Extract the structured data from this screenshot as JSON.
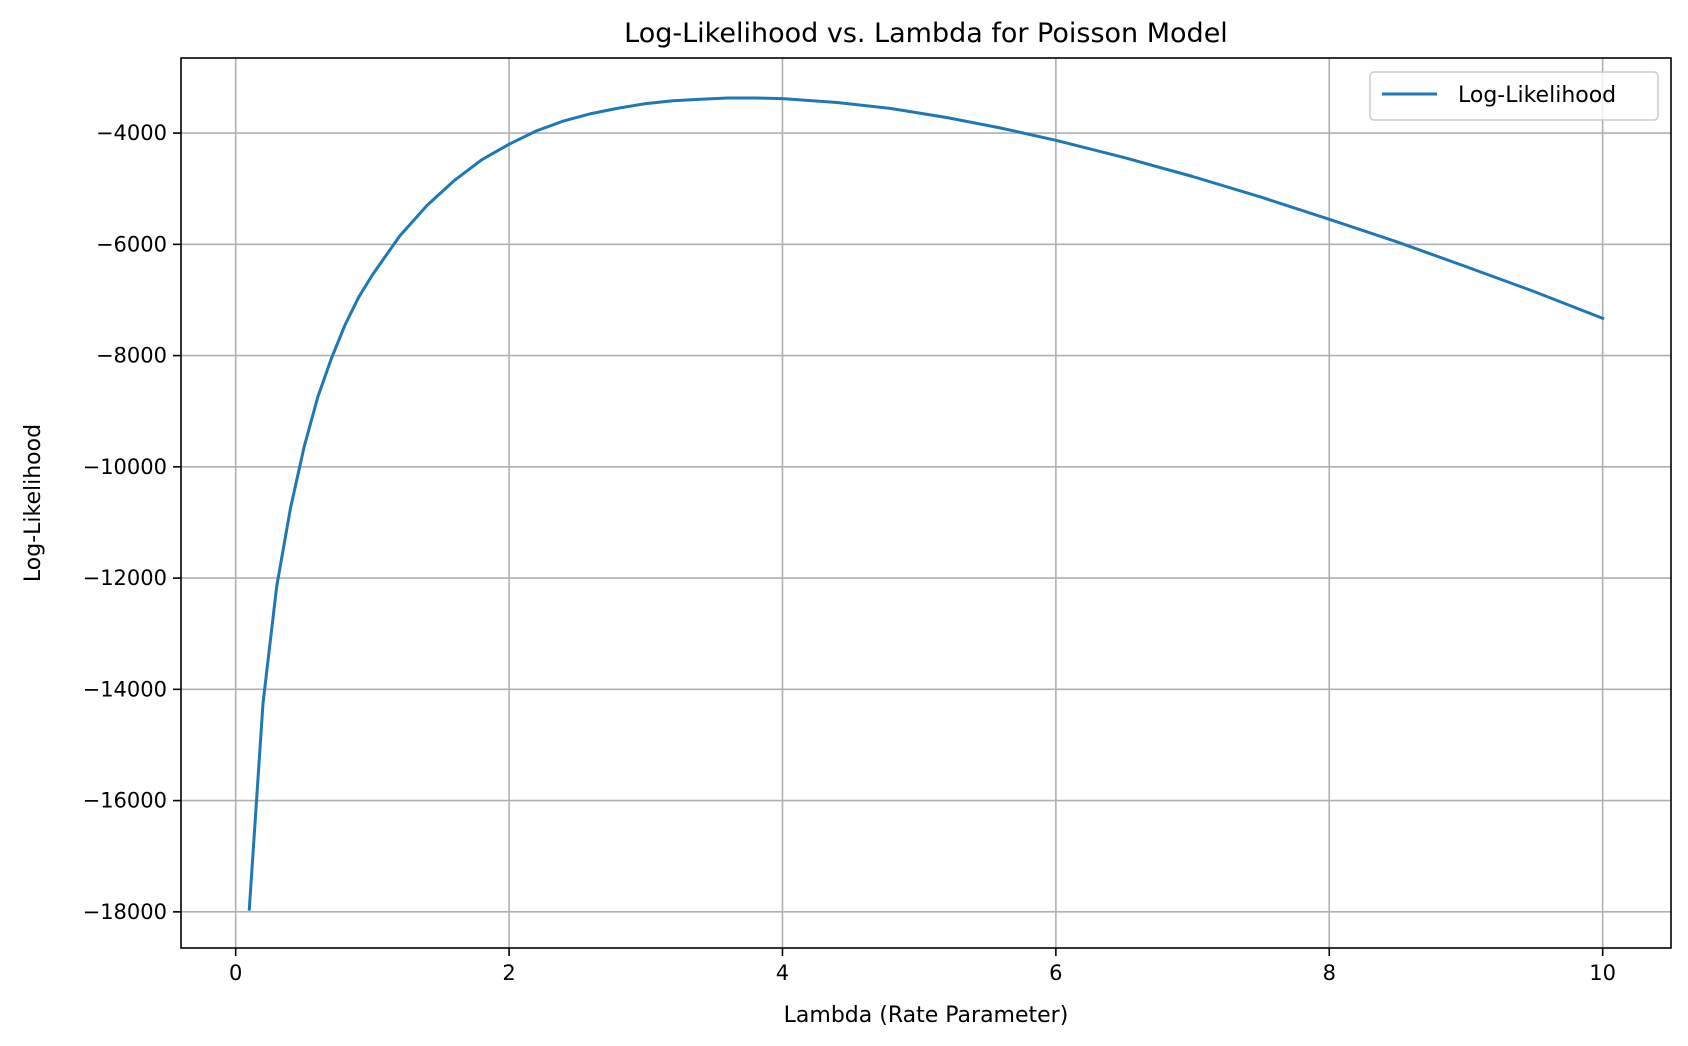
{
  "chart_data": {
    "type": "line",
    "title": "Log-Likelihood vs. Lambda for Poisson Model",
    "xlabel": "Lambda (Rate Parameter)",
    "ylabel": "Log-Likelihood",
    "xlim": [
      -0.4,
      10.5
    ],
    "ylim": [
      -18650,
      -2650
    ],
    "xticks": [
      0,
      2,
      4,
      6,
      8,
      10
    ],
    "xtick_labels": [
      "0",
      "2",
      "4",
      "6",
      "8",
      "10"
    ],
    "yticks": [
      -4000,
      -6000,
      -8000,
      -10000,
      -12000,
      -14000,
      -16000,
      -18000
    ],
    "ytick_labels": [
      "−4000",
      "−6000",
      "−8000",
      "−10000",
      "−12000",
      "−14000",
      "−16000",
      "−18000"
    ],
    "grid": true,
    "legend_position": "top-right",
    "series": [
      {
        "name": "Log-Likelihood",
        "color": "#1f77b4",
        "x": [
          0.1,
          0.2,
          0.3,
          0.4,
          0.5,
          0.6,
          0.7,
          0.8,
          0.9,
          1.0,
          1.2,
          1.4,
          1.6,
          1.8,
          2.0,
          2.2,
          2.4,
          2.6,
          2.8,
          3.0,
          3.2,
          3.4,
          3.6,
          3.8,
          4.0,
          4.4,
          4.8,
          5.2,
          5.6,
          6.0,
          6.5,
          7.0,
          7.5,
          8.0,
          8.5,
          9.0,
          9.5,
          10.0
        ],
        "y": [
          -17950,
          -14250,
          -12150,
          -10750,
          -9650,
          -8750,
          -8050,
          -7450,
          -6950,
          -6550,
          -5850,
          -5300,
          -4850,
          -4480,
          -4200,
          -3960,
          -3780,
          -3650,
          -3550,
          -3470,
          -3420,
          -3390,
          -3370,
          -3370,
          -3380,
          -3450,
          -3560,
          -3720,
          -3910,
          -4130,
          -4440,
          -4780,
          -5150,
          -5550,
          -5960,
          -6400,
          -6850,
          -7330
        ]
      }
    ]
  }
}
